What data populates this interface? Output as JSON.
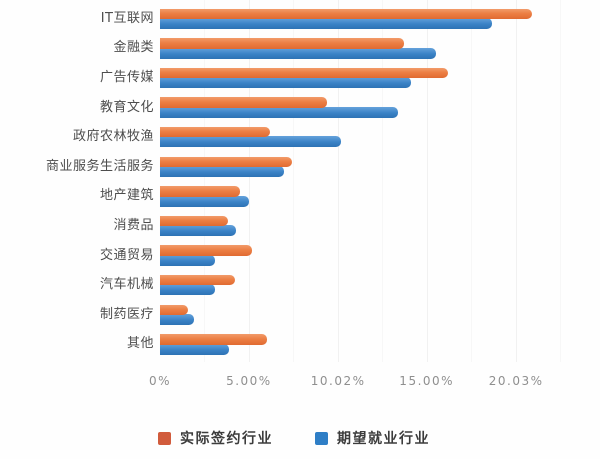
{
  "chart_data": {
    "type": "bar",
    "orientation": "horizontal",
    "title": "",
    "xlabel": "",
    "ylabel": "",
    "xlim": [
      0,
      22.5
    ],
    "grid": "vertical-faint",
    "legend_position": "bottom",
    "categories": [
      "IT互联网",
      "金融类",
      "广告传媒",
      "教育文化",
      "政府农林牧渔",
      "商业服务生活服务",
      "地产建筑",
      "消费品",
      "交通贸易",
      "汽车机械",
      "制药医疗",
      "其他"
    ],
    "series": [
      {
        "name": "实际签约行业",
        "color": "#d15b3c",
        "values": [
          20.9,
          13.7,
          16.2,
          9.4,
          6.2,
          7.4,
          4.5,
          3.8,
          5.2,
          4.2,
          1.6,
          6.0
        ]
      },
      {
        "name": "期望就业行业",
        "color": "#2e7ec6",
        "values": [
          18.7,
          15.5,
          14.1,
          13.4,
          10.2,
          7.0,
          5.0,
          4.3,
          3.1,
          3.1,
          1.9,
          3.9
        ]
      }
    ],
    "x_ticks": [
      {
        "label": "0%",
        "value": 0
      },
      {
        "label": "5.00%",
        "value": 5
      },
      {
        "label": "10.02%",
        "value": 10.02
      },
      {
        "label": "15.00%",
        "value": 15
      },
      {
        "label": "20.03%",
        "value": 20.03
      }
    ]
  },
  "colors": {
    "bar_orange_top": "#f29b6a",
    "bar_orange_bottom": "#e06a31",
    "bar_blue_top": "#64a2db",
    "bar_blue_bottom": "#2d72b4",
    "gridline": "#f1f1f1",
    "category_text": "#4d4d4d",
    "tick_text": "#8f8f8f",
    "legend_text": "#3c3c3c",
    "background": "#fefefe"
  }
}
